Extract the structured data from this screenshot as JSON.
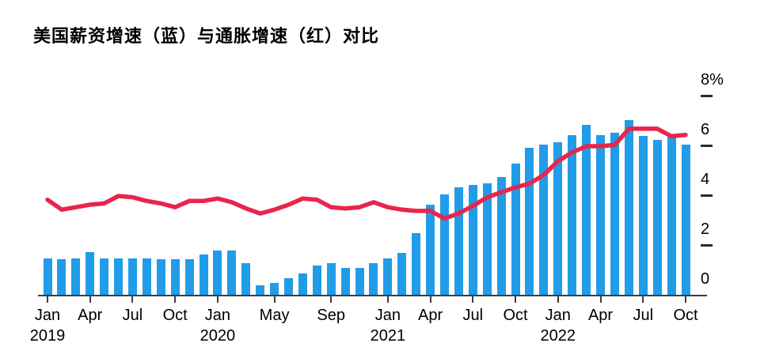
{
  "page": {
    "background": "#ffffff"
  },
  "chart_data": {
    "type": "combo",
    "title": "美国薪资增速（蓝）与通胀增速（红）对比",
    "x_start": "Jan 2019",
    "x_end": "Oct 2022",
    "x_frequency": "monthly",
    "ylim": [
      0,
      8
    ],
    "grid": "off",
    "y_axis_side": "right",
    "series": [
      {
        "name": "薪资增速（蓝）",
        "type": "bar",
        "color": "#219ce8",
        "values": [
          1.5,
          1.45,
          1.5,
          1.75,
          1.5,
          1.5,
          1.5,
          1.5,
          1.45,
          1.45,
          1.45,
          1.65,
          1.8,
          1.8,
          1.3,
          0.4,
          0.5,
          0.7,
          0.9,
          1.2,
          1.3,
          1.1,
          1.1,
          1.3,
          1.5,
          1.7,
          2.5,
          3.65,
          4.05,
          4.35,
          4.45,
          4.5,
          4.75,
          5.3,
          5.95,
          6.05,
          6.15,
          6.45,
          6.85,
          6.45,
          6.55,
          7.05,
          6.4,
          6.25,
          6.4,
          6.05
        ]
      },
      {
        "name": "通胀增速（红）",
        "type": "line",
        "color": "#e8254c",
        "values": [
          3.85,
          3.45,
          3.55,
          3.65,
          3.7,
          4.0,
          3.95,
          3.8,
          3.7,
          3.55,
          3.8,
          3.8,
          3.9,
          3.75,
          3.5,
          3.3,
          3.45,
          3.65,
          3.9,
          3.85,
          3.55,
          3.5,
          3.55,
          3.75,
          3.55,
          3.45,
          3.4,
          3.4,
          3.1,
          3.3,
          3.6,
          3.95,
          4.15,
          4.35,
          4.5,
          4.85,
          5.4,
          5.75,
          6.0,
          6.0,
          6.05,
          6.7,
          6.7,
          6.7,
          6.4,
          6.45
        ]
      }
    ],
    "yticks": [
      {
        "label": "8%",
        "value": 8,
        "dash": true
      },
      {
        "label": "6",
        "value": 6,
        "dash": true
      },
      {
        "label": "4",
        "value": 4,
        "dash": true
      },
      {
        "label": "2",
        "value": 2,
        "dash": true
      },
      {
        "label": "0",
        "value": 0,
        "dash": false
      }
    ],
    "xticks": [
      {
        "i": 0,
        "month": "Jan",
        "year": "2019"
      },
      {
        "i": 3,
        "month": "Apr"
      },
      {
        "i": 6,
        "month": "Jul"
      },
      {
        "i": 9,
        "month": "Oct"
      },
      {
        "i": 12,
        "month": "Jan",
        "year": "2020"
      },
      {
        "i": 16,
        "month": "May"
      },
      {
        "i": 20,
        "month": "Sep"
      },
      {
        "i": 24,
        "month": "Jan",
        "year": "2021"
      },
      {
        "i": 27,
        "month": "Apr"
      },
      {
        "i": 30,
        "month": "Jul"
      },
      {
        "i": 33,
        "month": "Oct"
      },
      {
        "i": 36,
        "month": "Jan",
        "year": "2022"
      },
      {
        "i": 39,
        "month": "Apr"
      },
      {
        "i": 42,
        "month": "Jul"
      },
      {
        "i": 45,
        "month": "Oct"
      }
    ],
    "axis_color": "#3d3d3d",
    "label_color": "#000000"
  }
}
